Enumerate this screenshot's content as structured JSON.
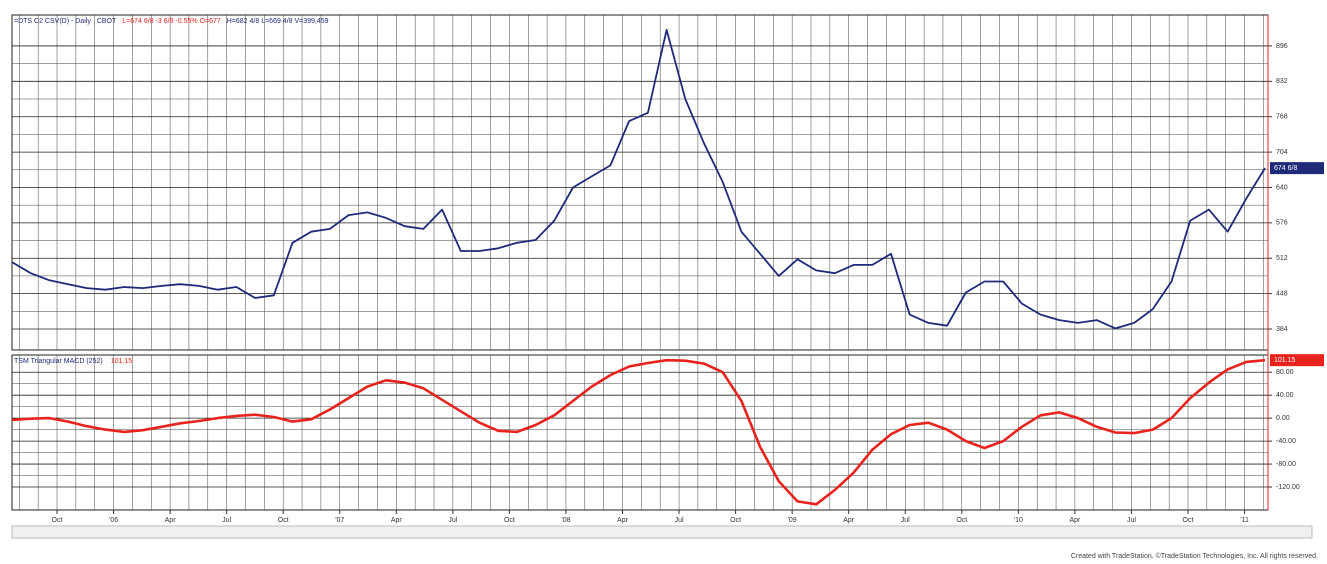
{
  "chart_data": [
    {
      "type": "line",
      "title": "=DTS C2 CSV(D) - Daily",
      "exchange": "CBOT",
      "quote_red": "L=674 6/8  -3 6/8  -0.55%  O=677",
      "quote": "H=682 4/8  L=669 4/8  V=399,459",
      "last_label": "674 6/8",
      "ylim": [
        346,
        952
      ],
      "yticks": [
        896,
        832,
        768,
        704,
        640,
        576,
        512,
        448,
        384
      ],
      "grid": true,
      "series": [
        {
          "color": "#1f2a78",
          "values": [
            505,
            485,
            472,
            465,
            458,
            455,
            460,
            458,
            462,
            465,
            462,
            455,
            460,
            440,
            445,
            540,
            560,
            565,
            590,
            595,
            585,
            570,
            565,
            600,
            525,
            525,
            530,
            540,
            545,
            580,
            640,
            660,
            680,
            760,
            775,
            925,
            800,
            720,
            650,
            560,
            520,
            480,
            510,
            490,
            485,
            500,
            500,
            520,
            410,
            395,
            390,
            450,
            470,
            470,
            430,
            410,
            400,
            395,
            400,
            385,
            395,
            420,
            470,
            580,
            600,
            560,
            620,
            675
          ]
        }
      ]
    },
    {
      "type": "line",
      "title": "TSM Triangular MACD (252)",
      "last_value_label": "101.15",
      "ylim": [
        -160,
        110
      ],
      "yticks": [
        {
          "value": 80,
          "label": "80.00"
        },
        {
          "value": 40,
          "label": "40.00"
        },
        {
          "value": 0,
          "label": "0.00"
        },
        {
          "value": -40,
          "label": "-40.00"
        },
        {
          "value": -80,
          "label": "-80.00"
        },
        {
          "value": -120,
          "label": "-120.00"
        }
      ],
      "grid": true,
      "x_labels": [
        "Oct",
        "'06",
        "Apr",
        "Jul",
        "Oct",
        "'07",
        "Apr",
        "Jul",
        "Oct",
        "'08",
        "Apr",
        "Jul",
        "Oct",
        "'09",
        "Apr",
        "Jul",
        "Oct",
        "'10",
        "Apr",
        "Jul",
        "Oct",
        "'11"
      ],
      "series": [
        {
          "color": "#e8231e",
          "values": [
            -3,
            -1,
            0,
            -6,
            -14,
            -20,
            -24,
            -21,
            -15,
            -9,
            -5,
            0,
            4,
            6,
            2,
            -6,
            -2,
            15,
            35,
            55,
            66,
            62,
            52,
            32,
            12,
            -8,
            -22,
            -24,
            -12,
            5,
            30,
            55,
            75,
            90,
            96,
            101,
            100,
            95,
            80,
            30,
            -50,
            -110,
            -145,
            -150,
            -125,
            -95,
            -55,
            -28,
            -12,
            -8,
            -20,
            -40,
            -52,
            -40,
            -15,
            5,
            10,
            0,
            -15,
            -25,
            -26,
            -20,
            0,
            35,
            62,
            85,
            98,
            101
          ]
        }
      ]
    }
  ],
  "footer": "Created with TradeStation. ©TradeStation Technologies, Inc. All rights reserved."
}
